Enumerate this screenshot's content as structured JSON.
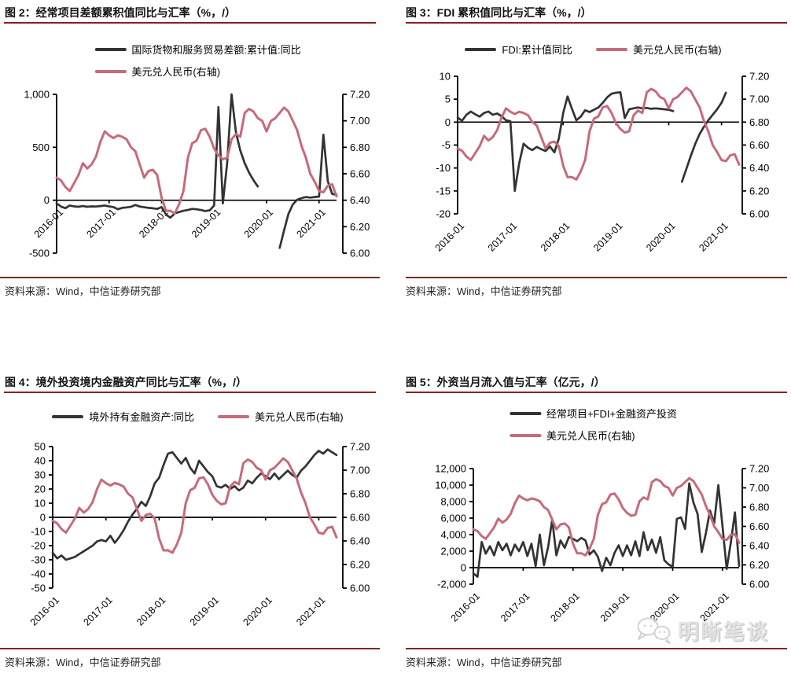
{
  "ui": {
    "source_note": "资料来源：Wind，中信证券研究部",
    "watermark": {
      "text": "明晰笔谈",
      "icon": "chat-bubbles-icon"
    },
    "accent_rule_color": "#8c1f1f",
    "source_rule_color": "#7b2a22",
    "series_black_color": "#333333",
    "series_pink_color": "#c76a7a"
  },
  "chart_data": [
    {
      "type": "line",
      "title": "图 2：经常项目差额累积值同比与汇率（%，/）",
      "x_start": "2016-01",
      "x_freq": "monthly",
      "x_count": 65,
      "x_tick_labels": [
        "2016-01",
        "2017-01",
        "2018-01",
        "2019-01",
        "2020-01",
        "2021-01"
      ],
      "x_tick_indices": [
        0,
        12,
        24,
        36,
        48,
        60
      ],
      "x_label_position": "zero-line",
      "grid": "off",
      "legend_position": "top",
      "left_axis": {
        "max": 1000,
        "min": -500,
        "tick_values": [
          1000,
          500,
          0,
          -500
        ],
        "tick_labels": [
          "1,000",
          "500",
          "0",
          "-500"
        ]
      },
      "right_axis": {
        "max": 7.2,
        "min": 6.0,
        "tick_values": [
          7.2,
          7.0,
          6.8,
          6.6,
          6.4,
          6.2,
          6.0
        ],
        "tick_labels": [
          "7.20",
          "7.00",
          "6.80",
          "6.60",
          "6.40",
          "6.20",
          "6.00"
        ]
      },
      "series": [
        {
          "name": "国际货物和服务贸易差额:累计值:同比",
          "axis": "left",
          "color": "#333333",
          "values": [
            -30,
            -60,
            -75,
            -50,
            -58,
            -62,
            -55,
            -62,
            -58,
            -60,
            -55,
            -50,
            -58,
            -65,
            -85,
            -72,
            -68,
            -62,
            -45,
            -60,
            -66,
            -72,
            -76,
            -82,
            -65,
            -135,
            -165,
            -125,
            -112,
            -100,
            -92,
            -82,
            -86,
            -92,
            -102,
            -95,
            -50,
            880,
            -30,
            350,
            1000,
            640,
            470,
            350,
            260,
            190,
            130,
            null,
            null,
            null,
            null,
            -450,
            -285,
            -130,
            -40,
            5,
            20,
            30,
            25,
            30,
            35,
            620,
            180,
            60,
            50
          ]
        },
        {
          "name": "美元兑人民币(右轴)",
          "axis": "right",
          "color": "#c76a7a",
          "values": [
            6.57,
            6.55,
            6.5,
            6.47,
            6.53,
            6.59,
            6.68,
            6.64,
            6.67,
            6.73,
            6.84,
            6.92,
            6.89,
            6.87,
            6.89,
            6.88,
            6.86,
            6.8,
            6.77,
            6.67,
            6.57,
            6.62,
            6.63,
            6.59,
            6.42,
            6.32,
            6.32,
            6.3,
            6.37,
            6.47,
            6.72,
            6.83,
            6.85,
            6.93,
            6.94,
            6.88,
            6.79,
            6.74,
            6.71,
            6.72,
            6.86,
            6.9,
            6.88,
            7.06,
            7.09,
            7.07,
            7.02,
            7.0,
            6.92,
            7.0,
            7.02,
            7.06,
            7.1,
            7.07,
            7.0,
            6.93,
            6.81,
            6.72,
            6.6,
            6.54,
            6.47,
            6.46,
            6.51,
            6.52,
            6.43
          ]
        }
      ]
    },
    {
      "type": "line",
      "title": "图 3：FDI 累积值同比与汇率（%，/）",
      "x_start": "2016-01",
      "x_freq": "monthly",
      "x_count": 65,
      "x_tick_labels": [
        "2016-01",
        "2017-01",
        "2018-01",
        "2019-01",
        "2020-01",
        "2021-01"
      ],
      "x_tick_indices": [
        0,
        12,
        24,
        36,
        48,
        60
      ],
      "x_label_position": "bottom",
      "grid": "off",
      "legend_position": "top",
      "left_axis": {
        "max": 10,
        "min": -20,
        "tick_values": [
          10,
          5,
          0,
          -5,
          -10,
          -15,
          -20
        ],
        "tick_labels": [
          "10",
          "5",
          "0",
          "-5",
          "-10",
          "-15",
          "-20"
        ]
      },
      "right_axis": {
        "max": 7.2,
        "min": 6.0,
        "tick_values": [
          7.2,
          7.0,
          6.8,
          6.6,
          6.4,
          6.2,
          6.0
        ],
        "tick_labels": [
          "7.20",
          "7.00",
          "6.80",
          "6.60",
          "6.40",
          "6.20",
          "6.00"
        ]
      },
      "series": [
        {
          "name": "FDI:累计值同比",
          "axis": "left",
          "color": "#333333",
          "values": [
            1.0,
            0.3,
            1.6,
            2.3,
            1.7,
            1.2,
            2.0,
            2.3,
            1.6,
            1.9,
            1.3,
            0.4,
            0.2,
            -15.0,
            -9.0,
            -4.7,
            -5.6,
            -6.1,
            -5.4,
            -5.9,
            -6.3,
            -5.3,
            -6.6,
            -3.6,
            2.0,
            5.6,
            2.9,
            0.4,
            1.2,
            2.6,
            2.2,
            2.7,
            3.2,
            4.2,
            5.4,
            6.2,
            6.4,
            6.5,
            0.9,
            2.8,
            3.0,
            3.2,
            3.0,
            3.1,
            2.9,
            3.0,
            2.9,
            2.8,
            2.7,
            2.4,
            null,
            -13.0,
            -10.2,
            -7.4,
            -4.8,
            -2.6,
            -1.0,
            0.4,
            1.6,
            2.8,
            4.2,
            6.4,
            null,
            null,
            null
          ]
        },
        {
          "name": "美元兑人民币(右轴)",
          "axis": "right",
          "color": "#c76a7a",
          "values": [
            6.57,
            6.55,
            6.5,
            6.47,
            6.53,
            6.59,
            6.68,
            6.64,
            6.67,
            6.73,
            6.84,
            6.92,
            6.89,
            6.87,
            6.89,
            6.88,
            6.86,
            6.8,
            6.77,
            6.67,
            6.57,
            6.62,
            6.63,
            6.59,
            6.42,
            6.32,
            6.32,
            6.3,
            6.37,
            6.47,
            6.72,
            6.83,
            6.85,
            6.93,
            6.94,
            6.88,
            6.79,
            6.74,
            6.71,
            6.72,
            6.86,
            6.9,
            6.88,
            7.06,
            7.09,
            7.07,
            7.02,
            7.0,
            6.92,
            7.0,
            7.02,
            7.06,
            7.1,
            7.07,
            7.0,
            6.93,
            6.81,
            6.72,
            6.6,
            6.54,
            6.47,
            6.46,
            6.51,
            6.52,
            6.43
          ]
        }
      ]
    },
    {
      "type": "line",
      "title": "图 4：境外投资境内金融资产同比与汇率（%，/）",
      "x_start": "2016-01",
      "x_freq": "monthly",
      "x_count": 65,
      "x_tick_labels": [
        "2016-01",
        "2017-01",
        "2018-01",
        "2019-01",
        "2020-01",
        "2021-01"
      ],
      "x_tick_indices": [
        0,
        12,
        24,
        36,
        48,
        60
      ],
      "x_label_position": "bottom",
      "grid": "off",
      "legend_position": "top",
      "left_axis": {
        "max": 50,
        "min": -50,
        "tick_values": [
          50,
          40,
          30,
          20,
          10,
          0,
          -10,
          -20,
          -30,
          -40,
          -50
        ],
        "tick_labels": [
          "50",
          "40",
          "30",
          "20",
          "10",
          "0",
          "-10",
          "-20",
          "-30",
          "-40",
          "-50"
        ]
      },
      "right_axis": {
        "max": 7.2,
        "min": 6.0,
        "tick_values": [
          7.2,
          7.0,
          6.8,
          6.6,
          6.4,
          6.2,
          6.0
        ],
        "tick_labels": [
          "7.20",
          "7.00",
          "6.80",
          "6.60",
          "6.40",
          "6.20",
          "6.00"
        ]
      },
      "series": [
        {
          "name": "境外持有金融资产:同比",
          "axis": "left",
          "color": "#333333",
          "values": [
            -25,
            -29,
            -27,
            -30,
            -29,
            -28,
            -26,
            -24,
            -22,
            -20,
            -17,
            -16,
            -17,
            -13,
            -18,
            -14,
            -9,
            -3,
            2,
            6,
            11,
            8,
            15,
            24,
            28,
            37,
            45,
            46,
            42,
            38,
            42,
            35,
            31,
            40,
            36,
            32,
            29,
            22,
            21,
            23,
            20,
            22,
            19,
            21,
            26,
            24,
            28,
            31,
            29,
            27,
            31,
            27,
            30,
            33,
            30,
            28,
            33,
            36,
            40,
            44,
            47,
            45,
            48,
            46,
            44
          ]
        },
        {
          "name": "美元兑人民币(右轴)",
          "axis": "right",
          "color": "#c76a7a",
          "values": [
            6.57,
            6.55,
            6.5,
            6.47,
            6.53,
            6.59,
            6.68,
            6.64,
            6.67,
            6.73,
            6.84,
            6.92,
            6.89,
            6.87,
            6.89,
            6.88,
            6.86,
            6.8,
            6.77,
            6.67,
            6.57,
            6.62,
            6.63,
            6.59,
            6.42,
            6.32,
            6.32,
            6.3,
            6.37,
            6.47,
            6.72,
            6.83,
            6.85,
            6.93,
            6.94,
            6.88,
            6.79,
            6.74,
            6.71,
            6.72,
            6.86,
            6.9,
            6.88,
            7.06,
            7.09,
            7.07,
            7.02,
            7.0,
            6.92,
            7.0,
            7.02,
            7.06,
            7.1,
            7.07,
            7.0,
            6.93,
            6.81,
            6.72,
            6.6,
            6.54,
            6.47,
            6.46,
            6.51,
            6.52,
            6.43
          ]
        }
      ]
    },
    {
      "type": "line",
      "title": "图 5：外资当月流入值与汇率（亿元，/）",
      "x_start": "2016-01",
      "x_freq": "monthly",
      "x_count": 65,
      "x_tick_labels": [
        "2016-01",
        "2017-01",
        "2018-01",
        "2019-01",
        "2020-01",
        "2021-01"
      ],
      "x_tick_indices": [
        0,
        12,
        24,
        36,
        48,
        60
      ],
      "x_label_position": "bottom",
      "grid": "off",
      "legend_position": "top",
      "left_axis": {
        "max": 12000,
        "min": -2000,
        "tick_values": [
          12000,
          10000,
          8000,
          6000,
          4000,
          2000,
          0,
          -2000
        ],
        "tick_labels": [
          "12,000",
          "10,000",
          "8,000",
          "6,000",
          "4,000",
          "2,000",
          "0",
          "-2,000"
        ]
      },
      "right_axis": {
        "max": 7.2,
        "min": 6.0,
        "tick_values": [
          7.2,
          7.0,
          6.8,
          6.6,
          6.4,
          6.2,
          6.0
        ],
        "tick_labels": [
          "7.20",
          "7.00",
          "6.80",
          "6.60",
          "6.40",
          "6.20",
          "6.00"
        ]
      },
      "series": [
        {
          "name": "经常项目+FDI+金融资产投资",
          "axis": "left",
          "color": "#333333",
          "values": [
            -700,
            -1100,
            3100,
            1700,
            2600,
            1500,
            3100,
            2100,
            2900,
            1500,
            2800,
            2000,
            3100,
            1400,
            2900,
            200,
            4000,
            300,
            2500,
            5800,
            1500,
            3300,
            2400,
            3700,
            3500,
            3200,
            3600,
            3300,
            1600,
            2100,
            1300,
            -400,
            1200,
            300,
            1800,
            2700,
            1400,
            2700,
            1500,
            3200,
            1400,
            4300,
            2100,
            3400,
            1800,
            3700,
            900,
            400,
            100,
            5900,
            6100,
            4700,
            10200,
            7900,
            6500,
            1900,
            4200,
            6900,
            5400,
            10000,
            5000,
            -150,
            3000,
            6700,
            200
          ]
        },
        {
          "name": "美元兑人民币(右轴)",
          "axis": "right",
          "color": "#c76a7a",
          "values": [
            6.57,
            6.55,
            6.5,
            6.47,
            6.53,
            6.59,
            6.68,
            6.64,
            6.67,
            6.73,
            6.84,
            6.92,
            6.89,
            6.87,
            6.89,
            6.88,
            6.86,
            6.8,
            6.77,
            6.67,
            6.57,
            6.62,
            6.63,
            6.59,
            6.42,
            6.32,
            6.32,
            6.3,
            6.37,
            6.47,
            6.72,
            6.83,
            6.85,
            6.93,
            6.94,
            6.88,
            6.79,
            6.74,
            6.71,
            6.72,
            6.86,
            6.9,
            6.88,
            7.06,
            7.09,
            7.07,
            7.02,
            7.0,
            6.92,
            7.0,
            7.02,
            7.06,
            7.1,
            7.07,
            7.0,
            6.93,
            6.81,
            6.72,
            6.6,
            6.54,
            6.47,
            6.46,
            6.51,
            6.52,
            6.43
          ]
        }
      ]
    }
  ]
}
